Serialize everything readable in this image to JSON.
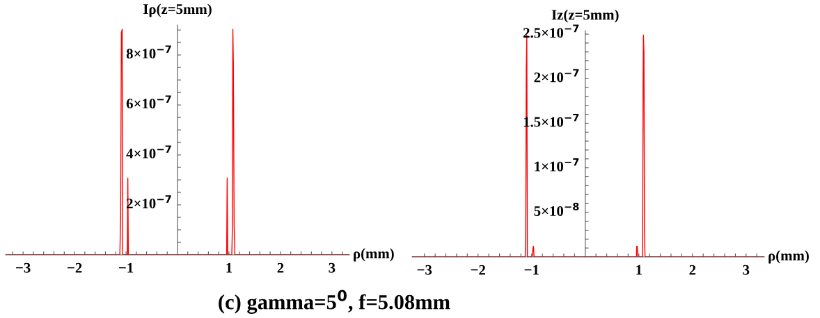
{
  "chart_data": [
    {
      "type": "line",
      "xlabel": "ρ(mm)",
      "ylabel": "Iρ(z=5mm)",
      "xlim": [
        -3.34,
        3.34
      ],
      "ylim": [
        0,
        9.2e-07
      ],
      "xticks": [
        {
          "value": -3,
          "label": "−3"
        },
        {
          "value": -2,
          "label": "−2"
        },
        {
          "value": -1,
          "label": "−1"
        },
        1,
        2,
        3,
        {
          "value": -3.2,
          "label": null
        },
        {
          "value": -2.8,
          "label": null
        },
        {
          "value": -2.6,
          "label": null
        },
        {
          "value": -2.4,
          "label": null
        },
        {
          "value": -2.2,
          "label": null
        },
        {
          "value": -1.8,
          "label": null
        },
        {
          "value": -1.6,
          "label": null
        },
        {
          "value": -1.4,
          "label": null
        },
        {
          "value": -1.2,
          "label": null
        },
        {
          "value": -0.8,
          "label": null
        },
        {
          "value": -0.6,
          "label": null
        },
        {
          "value": -0.4,
          "label": null
        },
        {
          "value": -0.2,
          "label": null
        },
        {
          "value": 0.2,
          "label": null
        },
        {
          "value": 0.4,
          "label": null
        },
        {
          "value": 0.6,
          "label": null
        },
        {
          "value": 0.8,
          "label": null
        },
        {
          "value": 1.2,
          "label": null
        },
        {
          "value": 1.4,
          "label": null
        },
        {
          "value": 1.6,
          "label": null
        },
        {
          "value": 1.8,
          "label": null
        },
        {
          "value": 2.2,
          "label": null
        },
        {
          "value": 2.4,
          "label": null
        },
        {
          "value": 2.6,
          "label": null
        },
        {
          "value": 2.8,
          "label": null
        },
        {
          "value": 3.2,
          "label": null
        }
      ],
      "yticks": [
        {
          "value": 2e-07,
          "label": "2×10$^{−7}$"
        },
        {
          "value": 4e-07,
          "label": "4×10$^{−7}$"
        },
        {
          "value": 6e-07,
          "label": "6×10$^{−7}$"
        },
        {
          "value": 8e-07,
          "label": "8×10$^{−7}$"
        },
        {
          "value": 5e-08,
          "label": null
        },
        {
          "value": 1e-07,
          "label": null
        },
        {
          "value": 1.5e-07,
          "label": null
        },
        {
          "value": 2.5e-07,
          "label": null
        },
        {
          "value": 3e-07,
          "label": null
        },
        {
          "value": 3.5e-07,
          "label": null
        },
        {
          "value": 4.5e-07,
          "label": null
        },
        {
          "value": 5e-07,
          "label": null
        },
        {
          "value": 5.5e-07,
          "label": null
        },
        {
          "value": 6.5e-07,
          "label": null
        },
        {
          "value": 7e-07,
          "label": null
        },
        {
          "value": 7.5e-07,
          "label": null
        },
        {
          "value": 8.5e-07,
          "label": null
        },
        {
          "value": 9e-07,
          "label": null
        }
      ],
      "series": [
        {
          "color": "#ff0000",
          "x": [
            -3.34,
            -1.12,
            -1.105,
            -1.09,
            -1.075,
            -1.065,
            -1.055,
            -0.975,
            -0.965,
            -0.955,
            0.955,
            0.965,
            0.975,
            1.055,
            1.065,
            1.075,
            1.085,
            1.1,
            1.115,
            3.34
          ],
          "values": [
            0,
            0,
            1.5e-07,
            8.9e-07,
            9.03e-07,
            0,
            0,
            0,
            3.07e-07,
            0,
            0,
            3.07e-07,
            0,
            0,
            1e-07,
            9.03e-07,
            7.7e-07,
            1.2e-07,
            0,
            0
          ]
        }
      ],
      "annotations": [
        "(c) gamma=5$^{0}$, f=5.08mm"
      ]
    },
    {
      "type": "line",
      "xlabel": "ρ(mm)",
      "ylabel": "Iz(z=5mm)",
      "xlim": [
        -3.23,
        3.34
      ],
      "ylim": [
        0,
        2.54e-07
      ],
      "xticks": [
        {
          "value": -3,
          "label": "−3"
        },
        {
          "value": -2,
          "label": "−2"
        },
        {
          "value": -1,
          "label": "−1"
        },
        1,
        2,
        3,
        {
          "value": -2.8,
          "label": null
        },
        {
          "value": -2.6,
          "label": null
        },
        {
          "value": -2.4,
          "label": null
        },
        {
          "value": -2.2,
          "label": null
        },
        {
          "value": -1.8,
          "label": null
        },
        {
          "value": -1.6,
          "label": null
        },
        {
          "value": -1.4,
          "label": null
        },
        {
          "value": -1.2,
          "label": null
        },
        {
          "value": -0.8,
          "label": null
        },
        {
          "value": -0.6,
          "label": null
        },
        {
          "value": -0.4,
          "label": null
        },
        {
          "value": -0.2,
          "label": null
        },
        {
          "value": 0.2,
          "label": null
        },
        {
          "value": 0.4,
          "label": null
        },
        {
          "value": 0.6,
          "label": null
        },
        {
          "value": 0.8,
          "label": null
        },
        {
          "value": 1.2,
          "label": null
        },
        {
          "value": 1.4,
          "label": null
        },
        {
          "value": 1.6,
          "label": null
        },
        {
          "value": 1.8,
          "label": null
        },
        {
          "value": 2.2,
          "label": null
        },
        {
          "value": 2.4,
          "label": null
        },
        {
          "value": 2.6,
          "label": null
        },
        {
          "value": 2.8,
          "label": null
        },
        {
          "value": 3.2,
          "label": null
        }
      ],
      "yticks": [
        {
          "value": 5e-08,
          "label": "5×10$^{−8}$"
        },
        {
          "value": 1e-07,
          "label": "1×10$^{−7}$"
        },
        {
          "value": 1.5e-07,
          "label": "1.5×10$^{−7}$"
        },
        {
          "value": 2e-07,
          "label": "2×10$^{−7}$"
        },
        {
          "value": 2.5e-07,
          "label": "2.5×10$^{−7}$"
        },
        {
          "value": 1e-08,
          "label": null
        },
        {
          "value": 2e-08,
          "label": null
        },
        {
          "value": 3e-08,
          "label": null
        },
        {
          "value": 4e-08,
          "label": null
        },
        {
          "value": 6e-08,
          "label": null
        },
        {
          "value": 7e-08,
          "label": null
        },
        {
          "value": 8e-08,
          "label": null
        },
        {
          "value": 9e-08,
          "label": null
        },
        {
          "value": 1.1e-07,
          "label": null
        },
        {
          "value": 1.2e-07,
          "label": null
        },
        {
          "value": 1.3e-07,
          "label": null
        },
        {
          "value": 1.4e-07,
          "label": null
        },
        {
          "value": 1.6e-07,
          "label": null
        },
        {
          "value": 1.7e-07,
          "label": null
        },
        {
          "value": 1.8e-07,
          "label": null
        },
        {
          "value": 1.9e-07,
          "label": null
        },
        {
          "value": 2.1e-07,
          "label": null
        },
        {
          "value": 2.2e-07,
          "label": null
        },
        {
          "value": 2.3e-07,
          "label": null
        },
        {
          "value": 2.4e-07,
          "label": null
        }
      ],
      "series": [
        {
          "color": "#ff0000",
          "x": [
            -3.23,
            -1.12,
            -1.11,
            -1.1,
            -1.09,
            -1.08,
            -1.07,
            -0.99,
            -0.975,
            -0.965,
            -0.955,
            0.955,
            0.96,
            0.97,
            0.98,
            1.07,
            1.08,
            1.085,
            1.095,
            1.105,
            1.115,
            3.34
          ],
          "values": [
            0,
            0,
            2.8e-08,
            2.1e-07,
            2.49e-07,
            0,
            0,
            0,
            1e-08,
            1.2e-08,
            0,
            0,
            1.2e-08,
            1.2e-08,
            0,
            0,
            2e-07,
            2.49e-07,
            2.3e-07,
            2.8e-08,
            0,
            0
          ]
        }
      ]
    }
  ]
}
